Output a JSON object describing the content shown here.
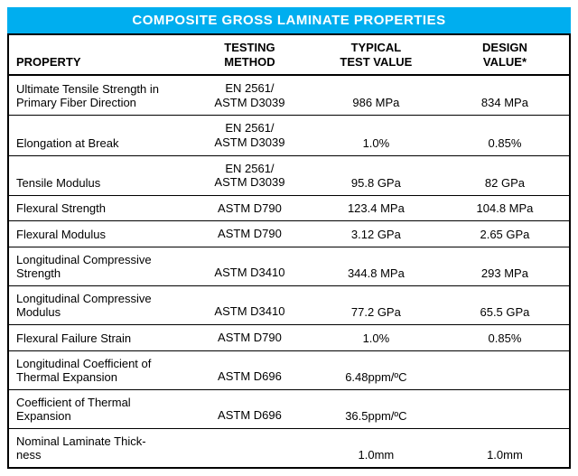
{
  "title": "COMPOSITE GROSS LAMINATE PROPERTIES",
  "title_bg": "#00aeef",
  "title_color": "#ffffff",
  "columns": {
    "property": "PROPERTY",
    "method_l1": "TESTING",
    "method_l2": "METHOD",
    "typical_l1": "TYPICAL",
    "typical_l2": "TEST VALUE",
    "design_l1": "DESIGN",
    "design_l2": "VALUE*"
  },
  "rows": [
    {
      "property": "Ultimate Tensile Strength in Primary Fiber Direction",
      "method_l1": "EN 2561/",
      "method_l2": "ASTM D3039",
      "typical": "986 MPa",
      "design": "834 MPa"
    },
    {
      "property": "Elongation at Break",
      "method_l1": "EN 2561/",
      "method_l2": "ASTM D3039",
      "typical": "1.0%",
      "design": "0.85%"
    },
    {
      "property": "Tensile Modulus",
      "method_l1": "EN 2561/",
      "method_l2": "ASTM D3039",
      "typical": "95.8 GPa",
      "design": "82 GPa"
    },
    {
      "property": "Flexural Strength",
      "method_l1": "",
      "method_l2": "ASTM D790",
      "typical": "123.4 MPa",
      "design": "104.8 MPa"
    },
    {
      "property": "Flexural Modulus",
      "method_l1": "",
      "method_l2": "ASTM D790",
      "typical": "3.12 GPa",
      "design": "2.65 GPa"
    },
    {
      "property": "Longitudinal Compressive Strength",
      "method_l1": "",
      "method_l2": "ASTM D3410",
      "typical": "344.8 MPa",
      "design": "293 MPa"
    },
    {
      "property": "Longitudinal Compressive Modulus",
      "method_l1": "",
      "method_l2": "ASTM D3410",
      "typical": "77.2 GPa",
      "design": "65.5 GPa"
    },
    {
      "property": "Flexural Failure Strain",
      "method_l1": "",
      "method_l2": "ASTM D790",
      "typical": "1.0%",
      "design": "0.85%"
    },
    {
      "property": "Longitudinal Coefficient of Thermal Expansion",
      "method_l1": "",
      "method_l2": "ASTM D696",
      "typical": "6.48ppm/ºC",
      "design": ""
    },
    {
      "property": "Coefficient of Thermal Expansion",
      "method_l1": "",
      "method_l2": "ASTM D696",
      "typical": "36.5ppm/ºC",
      "design": ""
    },
    {
      "property": "Nominal Laminate Thick-\nness",
      "method_l1": "",
      "method_l2": "",
      "typical": "1.0mm",
      "design": "1.0mm"
    }
  ]
}
